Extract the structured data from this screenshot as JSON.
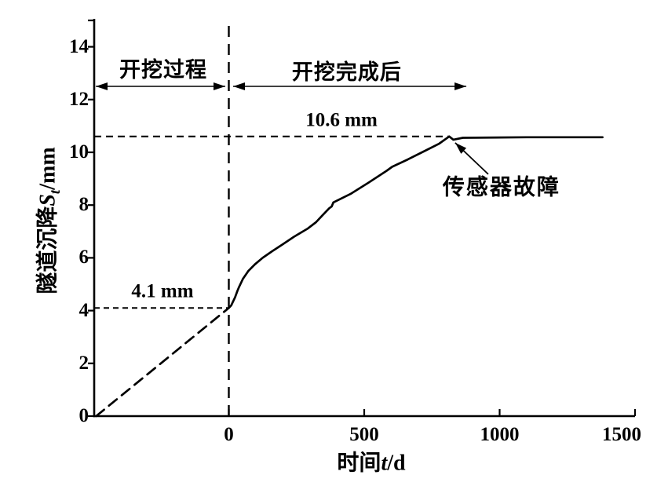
{
  "chart_data": {
    "type": "line",
    "title": "",
    "xlabel": {
      "cjk": "时间",
      "var": "t",
      "unit": "/d"
    },
    "ylabel": {
      "cjk": "隧道沉降",
      "var": "S",
      "sub": "t",
      "unit": "/mm"
    },
    "xlim": [
      -500,
      1500
    ],
    "ylim": [
      0,
      15
    ],
    "x_ticks": [
      0,
      500,
      1000,
      1500
    ],
    "y_ticks": [
      0,
      2,
      4,
      6,
      8,
      10,
      12,
      14
    ],
    "y_ticks_unlabeled": [
      15
    ],
    "grid": false,
    "legend": "none",
    "background": "#ffffff",
    "line_color": "#000000",
    "series": [
      {
        "name": "tunnel-settlement",
        "style": "solid",
        "points": [
          [
            0,
            4.1
          ],
          [
            9,
            4.2
          ],
          [
            23,
            4.5
          ],
          [
            32,
            4.75
          ],
          [
            38,
            4.9
          ],
          [
            52,
            5.2
          ],
          [
            72,
            5.5
          ],
          [
            96,
            5.75
          ],
          [
            125,
            6.0
          ],
          [
            160,
            6.25
          ],
          [
            197,
            6.5
          ],
          [
            241,
            6.8
          ],
          [
            290,
            7.1
          ],
          [
            322,
            7.35
          ],
          [
            345,
            7.6
          ],
          [
            371,
            7.88
          ],
          [
            380,
            7.95
          ],
          [
            386,
            8.1
          ],
          [
            449,
            8.42
          ],
          [
            516,
            8.85
          ],
          [
            583,
            9.3
          ],
          [
            603,
            9.45
          ],
          [
            661,
            9.73
          ],
          [
            719,
            10.03
          ],
          [
            777,
            10.33
          ],
          [
            814,
            10.6
          ],
          [
            829,
            10.48
          ],
          [
            864,
            10.55
          ],
          [
            1100,
            10.57
          ],
          [
            1380,
            10.57
          ]
        ]
      },
      {
        "name": "excavation-extrapolation",
        "style": "dashed",
        "points": [
          [
            -490,
            0
          ],
          [
            0,
            4.1
          ]
        ]
      }
    ],
    "reference_lines": [
      {
        "name": "plateau-line",
        "orientation": "horizontal",
        "value": 10.6,
        "from_x": -500,
        "to_x": 816
      },
      {
        "name": "initial-settlement-line",
        "orientation": "horizontal",
        "value": 4.1,
        "from_x": -500,
        "to_x": 0
      },
      {
        "name": "excavation-end-line",
        "orientation": "vertical",
        "value": 0,
        "from_y": 0,
        "to_y": 14.88
      }
    ],
    "annotations": {
      "region_left": {
        "text": "开挖过程",
        "x": -242,
        "y": 13.1,
        "arrow": {
          "y": 12.5,
          "from_x": -491,
          "to_x": -13
        }
      },
      "region_right": {
        "text": "开挖完成后",
        "x": 436,
        "y": 13.0,
        "arrow": {
          "y": 12.5,
          "from_x": 16,
          "to_x": 877
        }
      },
      "plateau_label": {
        "text": "10.6 mm",
        "x": 416,
        "y": 11.22
      },
      "initial_label": {
        "text": "4.1 mm",
        "x": -245,
        "y": 4.72
      },
      "sensor_failure": {
        "text": "传感器故障",
        "x": 1007,
        "y": 8.63,
        "arrow": {
          "from": [
            958,
            9.17
          ],
          "to": [
            836,
            10.36
          ]
        }
      }
    }
  }
}
